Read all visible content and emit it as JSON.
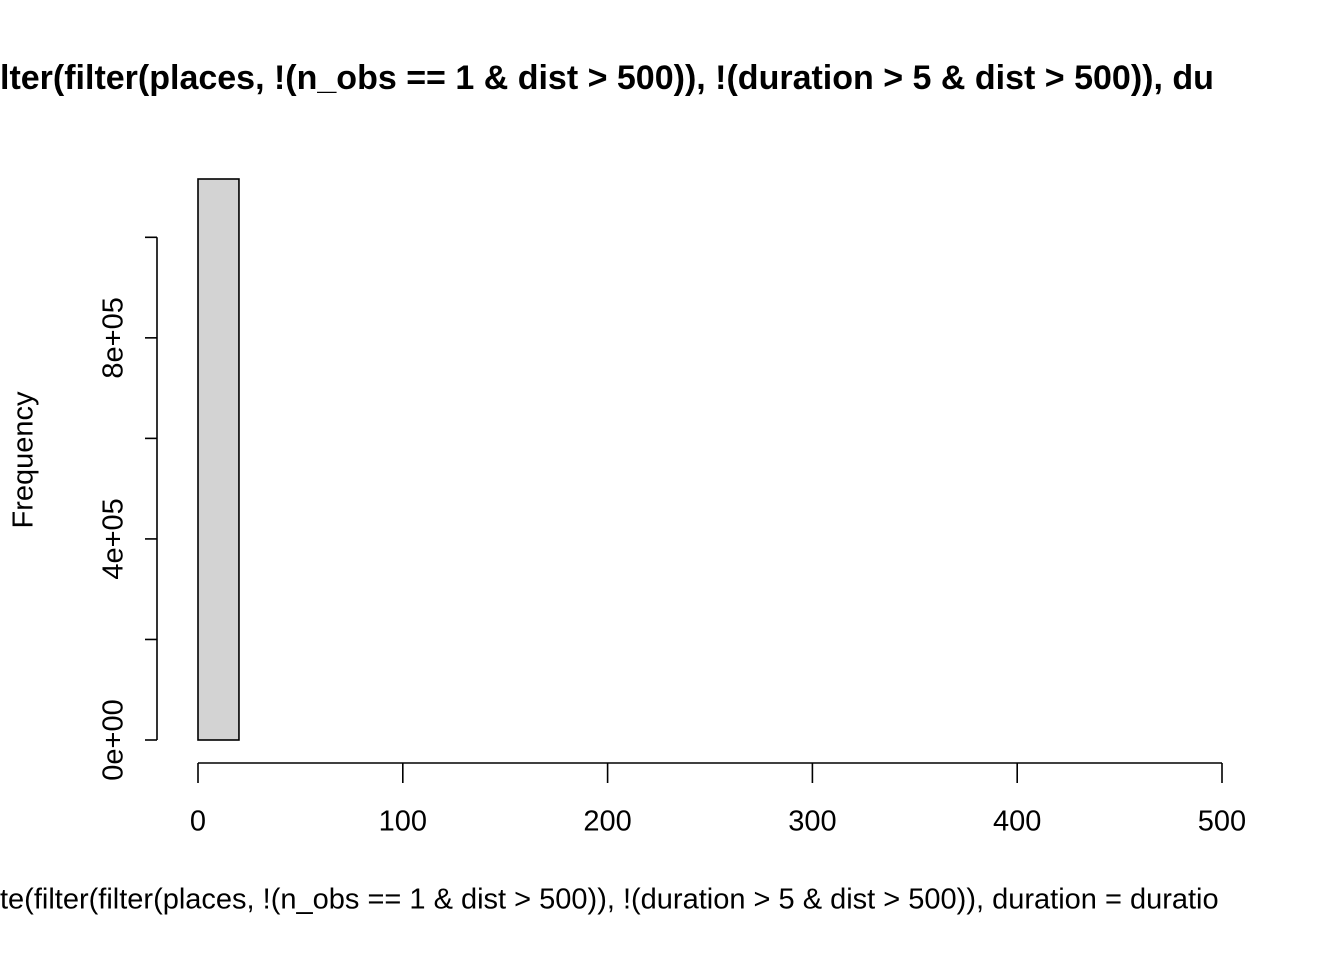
{
  "chart_data": {
    "type": "histogram",
    "title": "lter(filter(places, !(n_obs == 1 & dist > 500)), !(duration > 5 & dist > 500)), du",
    "x_label": "te(filter(filter(places, !(n_obs == 1 & dist > 500)), !(duration > 5 & dist > 500)), duration = duratio",
    "y_label": "Frequency",
    "bins": [
      0,
      20,
      40,
      60,
      80,
      100,
      120,
      140,
      160,
      180,
      200,
      220,
      240,
      260,
      280,
      300,
      320,
      340,
      360,
      380,
      400,
      420,
      440,
      460,
      480,
      500
    ],
    "values": [
      1116000,
      0,
      0,
      0,
      0,
      0,
      0,
      0,
      0,
      0,
      0,
      0,
      0,
      0,
      0,
      0,
      0,
      0,
      0,
      0,
      0,
      0,
      0,
      0,
      0
    ],
    "color": "#d3d3d3",
    "xlim": [
      0,
      500
    ],
    "xticks": [
      0,
      100,
      200,
      300,
      400,
      500
    ],
    "ylim": [
      0,
      1116000
    ],
    "yticks": [
      {
        "value": 0,
        "label": "0e+00"
      },
      {
        "value": 200000,
        "label": null
      },
      {
        "value": 400000,
        "label": "4e+05"
      },
      {
        "value": 600000,
        "label": null
      },
      {
        "value": 800000,
        "label": "8e+05"
      },
      {
        "value": 1000000,
        "label": null
      }
    ]
  }
}
